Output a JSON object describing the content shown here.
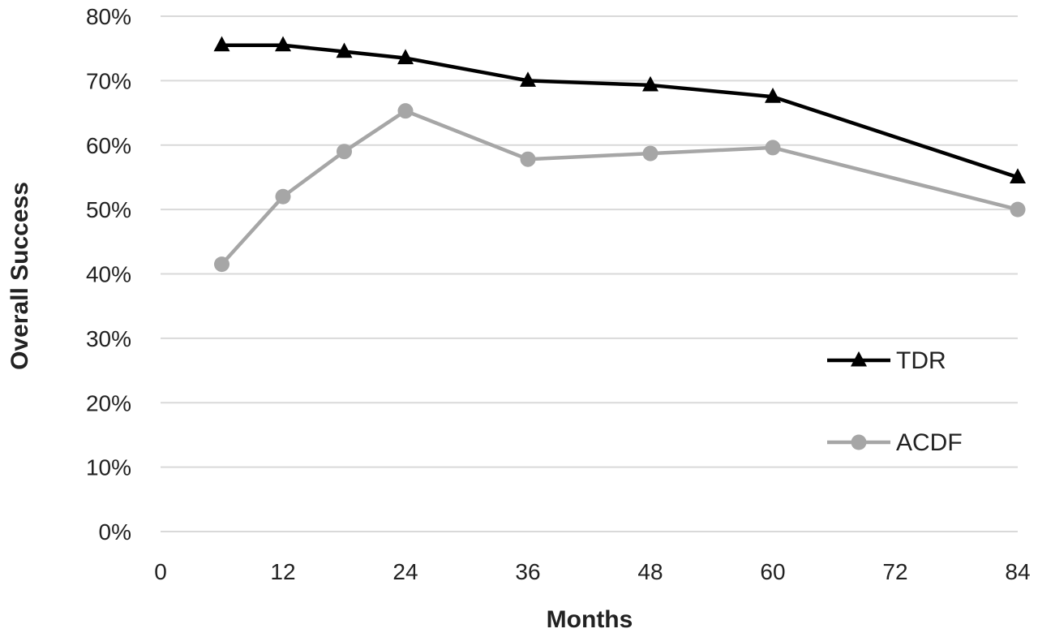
{
  "chart_data": {
    "type": "line",
    "xlabel": "Months",
    "ylabel": "Overall Success",
    "x_ticks": [
      0,
      12,
      24,
      36,
      48,
      60,
      72,
      84
    ],
    "y_ticks": [
      "0%",
      "10%",
      "20%",
      "30%",
      "40%",
      "50%",
      "60%",
      "70%",
      "80%"
    ],
    "xlim": [
      0,
      84
    ],
    "ylim": [
      0,
      80
    ],
    "y_unit": "%",
    "grid": "horizontal",
    "legend_position": "right",
    "series": [
      {
        "name": "TDR",
        "color": "#000000",
        "marker": "triangle",
        "x": [
          6,
          12,
          18,
          24,
          36,
          48,
          60,
          84
        ],
        "y": [
          75.5,
          75.5,
          74.5,
          73.5,
          70,
          69.3,
          67.5,
          55
        ]
      },
      {
        "name": "ACDF",
        "color": "#a6a6a6",
        "marker": "circle",
        "x": [
          6,
          12,
          18,
          24,
          36,
          48,
          60,
          84
        ],
        "y": [
          41.5,
          52,
          59,
          65.3,
          57.8,
          58.7,
          59.6,
          50
        ]
      }
    ]
  }
}
